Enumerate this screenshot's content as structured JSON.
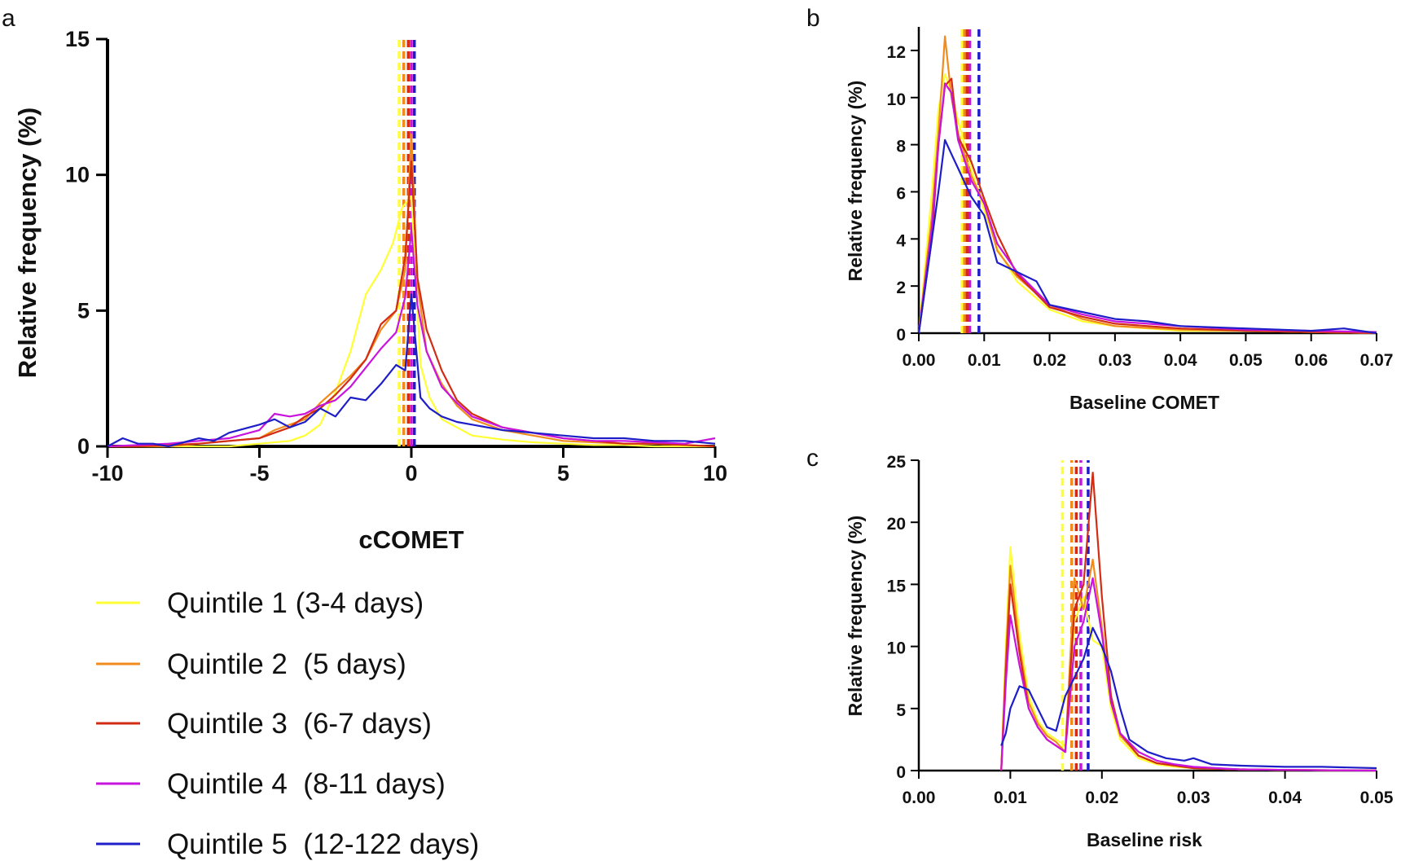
{
  "legend": [
    {
      "label": "Quintile 1 (3-4 days)",
      "color": "#ffff33"
    },
    {
      "label": "Quintile 2  (5 days)",
      "color": "#f08c1e"
    },
    {
      "label": "Quintile 3  (6-7 days)",
      "color": "#d22d14"
    },
    {
      "label": "Quintile 4  (8-11 days)",
      "color": "#c814dc"
    },
    {
      "label": "Quintile 5  (12-122 days)",
      "color": "#1e1ec8"
    }
  ],
  "chart_data": [
    {
      "panel": "a",
      "type": "line",
      "xlabel": "cCOMET",
      "ylabel": "Relative frequency (%)",
      "xlim": [
        -10,
        10
      ],
      "ylim": [
        0,
        15
      ],
      "xticks": [
        "-10",
        "-5",
        "0",
        "5",
        "10"
      ],
      "yticks": [
        "0",
        "5",
        "10",
        "15"
      ],
      "mean_lines": [
        -0.4,
        -0.25,
        -0.1,
        0.0,
        0.1
      ],
      "series": [
        {
          "x": [
            -10,
            -9,
            -8,
            -7,
            -6,
            -5,
            -4,
            -3.5,
            -3,
            -2.5,
            -2,
            -1.5,
            -1,
            -0.6,
            -0.3,
            0,
            0.3,
            0.6,
            1,
            1.5,
            2,
            3,
            4,
            5,
            6,
            7,
            8,
            9,
            10
          ],
          "y": [
            0,
            0,
            0,
            0,
            0,
            0.1,
            0.2,
            0.4,
            0.8,
            2,
            3.5,
            5.6,
            6.5,
            7.5,
            8.8,
            9.2,
            3,
            1.8,
            1,
            0.7,
            0.4,
            0.25,
            0.15,
            0.1,
            0.05,
            0.05,
            0,
            0,
            0
          ]
        },
        {
          "x": [
            -10,
            -9,
            -8,
            -7,
            -6,
            -5,
            -4.5,
            -4,
            -3.5,
            -3,
            -2.5,
            -2,
            -1.5,
            -1,
            -0.5,
            -0.2,
            0,
            0.2,
            0.5,
            1,
            1.5,
            2,
            3,
            4,
            5,
            6,
            7,
            8,
            9,
            10
          ],
          "y": [
            0,
            0,
            0,
            0.1,
            0.2,
            0.3,
            0.6,
            0.8,
            1,
            1.6,
            2.1,
            2.6,
            3.2,
            4.3,
            5,
            6.5,
            11.5,
            6,
            3.5,
            2.3,
            1.5,
            1,
            0.6,
            0.4,
            0.2,
            0.15,
            0.1,
            0.1,
            0.05,
            0
          ]
        },
        {
          "x": [
            -10,
            -9,
            -8,
            -7,
            -6,
            -5,
            -4.5,
            -4,
            -3.5,
            -3,
            -2.5,
            -2,
            -1.5,
            -1,
            -0.5,
            -0.2,
            0,
            0.2,
            0.5,
            1,
            1.5,
            2,
            3,
            4,
            5,
            6,
            7,
            8,
            9,
            10
          ],
          "y": [
            0,
            0,
            0.05,
            0.1,
            0.2,
            0.3,
            0.5,
            0.7,
            1.1,
            1.4,
            1.9,
            2.5,
            3.2,
            4.5,
            5,
            7,
            10.5,
            6.2,
            4.3,
            2.8,
            1.7,
            1.2,
            0.7,
            0.5,
            0.3,
            0.2,
            0.1,
            0.1,
            0.05,
            0
          ]
        },
        {
          "x": [
            -10,
            -9,
            -8,
            -7,
            -6,
            -5,
            -4.5,
            -4,
            -3.5,
            -3,
            -2.5,
            -2,
            -1.5,
            -1,
            -0.5,
            -0.2,
            0,
            0.2,
            0.5,
            1,
            1.5,
            2,
            3,
            4,
            5,
            6,
            7,
            8,
            9,
            10
          ],
          "y": [
            0,
            0.05,
            0.1,
            0.2,
            0.3,
            0.6,
            1.2,
            1.1,
            1.2,
            1.5,
            1.7,
            2.2,
            2.9,
            3.6,
            4.2,
            5.5,
            8,
            5.2,
            3.5,
            2.2,
            1.6,
            1.1,
            0.7,
            0.5,
            0.3,
            0.2,
            0.2,
            0.15,
            0.1,
            0.3
          ]
        },
        {
          "x": [
            -10,
            -9.5,
            -9,
            -8.5,
            -8,
            -7,
            -6.5,
            -6,
            -5,
            -4.5,
            -4,
            -3.5,
            -3,
            -2.5,
            -2,
            -1.5,
            -1,
            -0.5,
            -0.2,
            0,
            0.3,
            0.6,
            1,
            1.5,
            2,
            3,
            4,
            5,
            6,
            7,
            8,
            9,
            10
          ],
          "y": [
            0,
            0.3,
            0.1,
            0.1,
            0,
            0.3,
            0.2,
            0.5,
            0.8,
            1,
            0.7,
            0.9,
            1.4,
            1.1,
            1.8,
            1.7,
            2.3,
            3,
            2.8,
            5.6,
            1.8,
            1.4,
            1.1,
            0.9,
            0.8,
            0.6,
            0.5,
            0.4,
            0.3,
            0.3,
            0.2,
            0.2,
            0.1
          ]
        }
      ]
    },
    {
      "panel": "b",
      "type": "line",
      "xlabel": "Baseline COMET",
      "ylabel": "Relative frequency (%)",
      "xlim": [
        -0.001,
        0.07
      ],
      "ylim": [
        0,
        13
      ],
      "xticks": [
        "0.00",
        "0.01",
        "0.02",
        "0.03",
        "0.04",
        "0.05",
        "0.06",
        "0.07"
      ],
      "yticks": [
        "0",
        "2",
        "4",
        "6",
        "8",
        "10",
        "12"
      ],
      "mean_lines": [
        0.0066,
        0.007,
        0.0074,
        0.0078,
        0.0092
      ],
      "series": [
        {
          "x": [
            0,
            0.002,
            0.003,
            0.004,
            0.005,
            0.006,
            0.008,
            0.01,
            0.012,
            0.015,
            0.02,
            0.025,
            0.03,
            0.04,
            0.05,
            0.06,
            0.07
          ],
          "y": [
            0,
            6,
            9.5,
            11,
            10.2,
            9,
            7,
            5.2,
            3.6,
            2.2,
            1,
            0.5,
            0.3,
            0.1,
            0.1,
            0.05,
            0
          ]
        },
        {
          "x": [
            0,
            0.002,
            0.003,
            0.004,
            0.005,
            0.006,
            0.008,
            0.01,
            0.012,
            0.015,
            0.02,
            0.025,
            0.03,
            0.04,
            0.05,
            0.06,
            0.07
          ],
          "y": [
            0,
            5,
            8.5,
            12.6,
            10,
            8.5,
            6.7,
            5.5,
            3.5,
            2.4,
            1.2,
            0.6,
            0.3,
            0.15,
            0.1,
            0.1,
            0
          ]
        },
        {
          "x": [
            0,
            0.002,
            0.003,
            0.004,
            0.005,
            0.006,
            0.008,
            0.01,
            0.012,
            0.015,
            0.02,
            0.025,
            0.03,
            0.04,
            0.05,
            0.06,
            0.07
          ],
          "y": [
            0,
            4,
            8,
            10.5,
            10.8,
            8.3,
            7.3,
            5.7,
            4.2,
            2.5,
            1.1,
            0.7,
            0.4,
            0.2,
            0.1,
            0.05,
            0
          ]
        },
        {
          "x": [
            0,
            0.002,
            0.003,
            0.004,
            0.005,
            0.006,
            0.008,
            0.01,
            0.012,
            0.015,
            0.02,
            0.025,
            0.03,
            0.04,
            0.05,
            0.06,
            0.07
          ],
          "y": [
            0,
            4.5,
            8,
            10.6,
            10.2,
            8.2,
            6.5,
            5.5,
            3.8,
            2.6,
            1.2,
            0.8,
            0.5,
            0.3,
            0.15,
            0.1,
            0.05
          ]
        },
        {
          "x": [
            0,
            0.002,
            0.003,
            0.004,
            0.005,
            0.006,
            0.008,
            0.01,
            0.012,
            0.015,
            0.018,
            0.02,
            0.025,
            0.03,
            0.035,
            0.04,
            0.05,
            0.06,
            0.065,
            0.07
          ],
          "y": [
            0,
            4,
            6,
            8.2,
            7.6,
            7,
            5.8,
            5,
            3,
            2.6,
            2.2,
            1.2,
            0.9,
            0.6,
            0.5,
            0.3,
            0.2,
            0.1,
            0.2,
            0
          ]
        }
      ]
    },
    {
      "panel": "c",
      "type": "line",
      "xlabel": "Baseline risk",
      "ylabel": "Relative frequency (%)",
      "xlim": [
        0,
        0.05
      ],
      "ylim": [
        0,
        25
      ],
      "xticks": [
        "0.00",
        "0.01",
        "0.02",
        "0.03",
        "0.04",
        "0.05"
      ],
      "yticks": [
        "0",
        "5",
        "10",
        "15",
        "20",
        "25"
      ],
      "mean_lines": [
        0.0157,
        0.0167,
        0.0172,
        0.0177,
        0.0185
      ],
      "series": [
        {
          "x": [
            0.009,
            0.0095,
            0.01,
            0.011,
            0.012,
            0.013,
            0.014,
            0.015,
            0.016,
            0.017,
            0.018,
            0.019,
            0.02,
            0.021,
            0.022,
            0.024,
            0.026,
            0.028,
            0.03,
            0.035,
            0.04,
            0.05
          ],
          "y": [
            0,
            10,
            18,
            11,
            6,
            4,
            3,
            2.5,
            2,
            12,
            14,
            10.5,
            10,
            5,
            2.5,
            1,
            0.5,
            0.3,
            0.2,
            0.1,
            0.05,
            0
          ]
        },
        {
          "x": [
            0.009,
            0.0095,
            0.01,
            0.011,
            0.012,
            0.013,
            0.014,
            0.015,
            0.016,
            0.017,
            0.018,
            0.019,
            0.02,
            0.021,
            0.022,
            0.024,
            0.026,
            0.028,
            0.03,
            0.035,
            0.04,
            0.05
          ],
          "y": [
            0,
            9,
            16.5,
            10,
            5.5,
            3.8,
            2.8,
            2.3,
            1.5,
            15.5,
            13,
            17,
            11.5,
            5.5,
            2.8,
            1.2,
            0.6,
            0.4,
            0.2,
            0.1,
            0.05,
            0
          ]
        },
        {
          "x": [
            0.009,
            0.0095,
            0.01,
            0.011,
            0.012,
            0.013,
            0.014,
            0.015,
            0.016,
            0.017,
            0.018,
            0.019,
            0.02,
            0.021,
            0.022,
            0.024,
            0.026,
            0.028,
            0.03,
            0.035,
            0.04,
            0.05
          ],
          "y": [
            0,
            8,
            15,
            9.5,
            5,
            3.5,
            2.5,
            2,
            1.5,
            13,
            15,
            24,
            14,
            6,
            3,
            1.2,
            0.6,
            0.4,
            0.2,
            0.1,
            0.05,
            0
          ]
        },
        {
          "x": [
            0.009,
            0.0095,
            0.01,
            0.011,
            0.012,
            0.013,
            0.014,
            0.015,
            0.016,
            0.017,
            0.018,
            0.019,
            0.02,
            0.021,
            0.022,
            0.024,
            0.026,
            0.028,
            0.03,
            0.035,
            0.04,
            0.05
          ],
          "y": [
            0,
            7,
            12.5,
            8.5,
            5,
            3.5,
            2.5,
            2,
            1.5,
            10,
            12,
            15.5,
            11,
            5.5,
            3,
            1.5,
            0.8,
            0.5,
            0.3,
            0.1,
            0.05,
            0
          ]
        },
        {
          "x": [
            0.009,
            0.0095,
            0.01,
            0.011,
            0.012,
            0.013,
            0.014,
            0.015,
            0.016,
            0.017,
            0.018,
            0.019,
            0.02,
            0.021,
            0.022,
            0.023,
            0.025,
            0.027,
            0.029,
            0.03,
            0.032,
            0.035,
            0.04,
            0.044,
            0.05
          ],
          "y": [
            2,
            3,
            5,
            6.8,
            6.5,
            5,
            3.5,
            3.2,
            6,
            7.5,
            9,
            11.5,
            10,
            8,
            5,
            2.5,
            1.5,
            1,
            0.8,
            1,
            0.5,
            0.4,
            0.3,
            0.3,
            0.2
          ]
        }
      ]
    }
  ]
}
